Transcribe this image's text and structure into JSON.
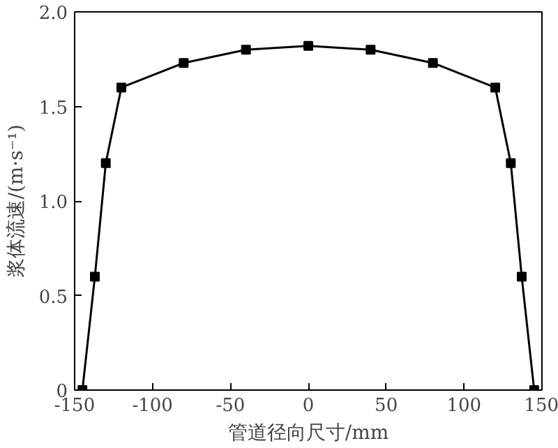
{
  "chart_data": {
    "type": "line",
    "xlabel": "管道径向尺寸/mm",
    "ylabel": "浆体流速/(m·s⁻¹)",
    "x": [
      -145,
      -137,
      -130,
      -120,
      -80,
      -40,
      0,
      40,
      80,
      120,
      130,
      137,
      145
    ],
    "series": [
      {
        "color": "#000000",
        "values": [
          0,
          0.6,
          1.2,
          1.6,
          1.73,
          1.8,
          1.82,
          1.8,
          1.73,
          1.6,
          1.2,
          0.6,
          0
        ]
      }
    ],
    "xlim": [
      -150,
      150
    ],
    "xticks": [
      -150,
      -100,
      -50,
      0,
      50,
      100,
      150
    ],
    "ylim": [
      0,
      2
    ],
    "yticks": [
      0,
      {
        "value": 0.5,
        "label": "0.5"
      },
      {
        "value": 1,
        "label": "1.0"
      },
      {
        "value": 1.5,
        "label": "1.5"
      },
      {
        "value": 2,
        "label": "2.0"
      }
    ],
    "marker": "square",
    "line_style": "solid"
  }
}
